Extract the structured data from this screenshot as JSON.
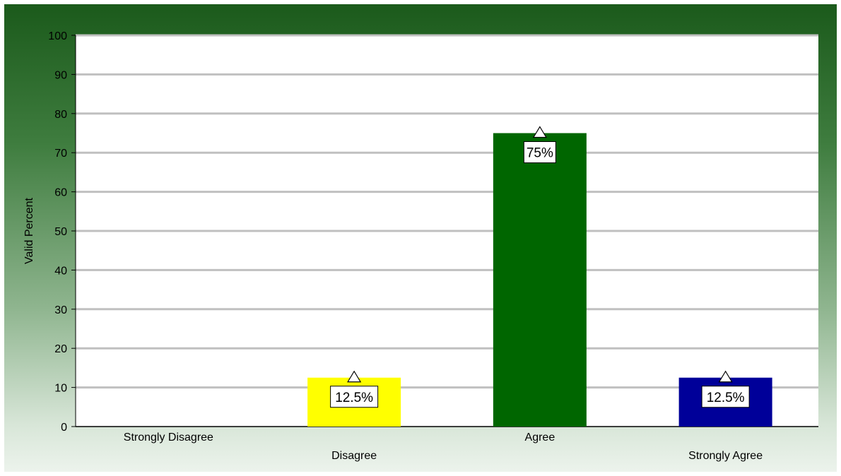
{
  "chart_data": {
    "type": "bar",
    "title": "",
    "xlabel": "",
    "ylabel": "Valid Percent",
    "ylim": [
      0,
      100
    ],
    "yticks": [
      0,
      10,
      20,
      30,
      40,
      50,
      60,
      70,
      80,
      90,
      100
    ],
    "grid": true,
    "categories": [
      "Strongly Disagree",
      "Disagree",
      "Agree",
      "Strongly Agree"
    ],
    "values": [
      0,
      12.5,
      75,
      12.5
    ],
    "data_labels": [
      "",
      "12.5%",
      "75%",
      "12.5%"
    ],
    "colors": [
      "#ffffff",
      "#ffff00",
      "#006600",
      "#000099"
    ],
    "background_gradient": [
      "#1b5a1b",
      "#ecf3ec"
    ],
    "plot_background": "#ffffff",
    "grid_color": "#c0c0c0"
  }
}
